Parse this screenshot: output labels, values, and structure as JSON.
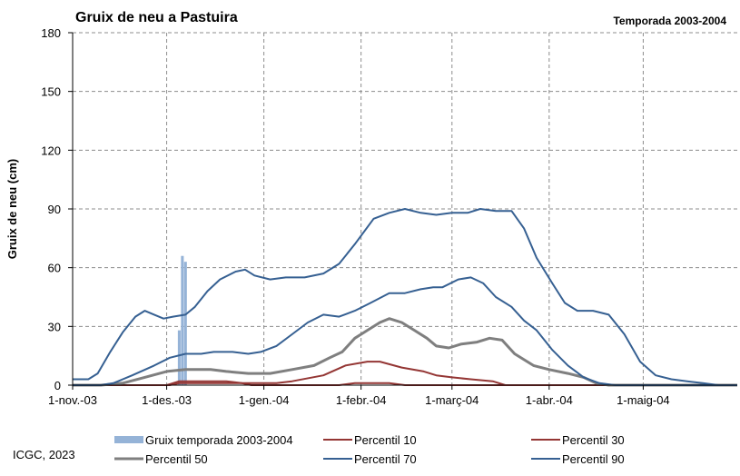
{
  "chart_data": {
    "type": "line",
    "title": "Gruix de neu a Pastuira",
    "subtitle": "Temporada 2003-2004",
    "ylabel": "Gruix de neu (cm)",
    "xlabel": "",
    "ylim": [
      0,
      180
    ],
    "yticks": [
      0,
      30,
      60,
      90,
      120,
      150,
      180
    ],
    "xlim": [
      "2003-11-01",
      "2004-05-31"
    ],
    "xticks": [
      {
        "date": "2003-11-01",
        "label": "1-nov.-03"
      },
      {
        "date": "2003-12-01",
        "label": "1-des.-03"
      },
      {
        "date": "2004-01-01",
        "label": "1-gen.-04"
      },
      {
        "date": "2004-02-01",
        "label": "1-febr.-04"
      },
      {
        "date": "2004-03-01",
        "label": "1-març-04"
      },
      {
        "date": "2004-04-01",
        "label": "1-abr.-04"
      },
      {
        "date": "2004-05-01",
        "label": "1-maig-04"
      }
    ],
    "grid": true,
    "legend_position": "bottom",
    "bars": {
      "name": "Gruix temporada 2003-2004",
      "color": "#95b3d7",
      "points": [
        [
          "2003-12-05",
          28
        ],
        [
          "2003-12-06",
          66
        ],
        [
          "2003-12-07",
          63
        ]
      ]
    },
    "series": [
      {
        "name": "Percentil 10",
        "color": "#943634",
        "width": 2,
        "points": [
          [
            "2003-11-01",
            0
          ],
          [
            "2003-12-02",
            0
          ],
          [
            "2003-12-05",
            1
          ],
          [
            "2003-12-25",
            1
          ],
          [
            "2003-12-28",
            0
          ],
          [
            "2004-01-25",
            0
          ],
          [
            "2004-01-30",
            1
          ],
          [
            "2004-02-10",
            1
          ],
          [
            "2004-02-15",
            0
          ],
          [
            "2004-05-31",
            0
          ]
        ]
      },
      {
        "name": "Percentil 30",
        "color": "#943634",
        "width": 2,
        "points": [
          [
            "2003-11-01",
            0
          ],
          [
            "2003-12-01",
            0
          ],
          [
            "2003-12-05",
            2
          ],
          [
            "2003-12-20",
            2
          ],
          [
            "2003-12-25",
            1
          ],
          [
            "2004-01-05",
            1
          ],
          [
            "2004-01-10",
            2
          ],
          [
            "2004-01-20",
            5
          ],
          [
            "2004-01-27",
            10
          ],
          [
            "2004-02-03",
            12
          ],
          [
            "2004-02-07",
            12
          ],
          [
            "2004-02-14",
            9
          ],
          [
            "2004-02-21",
            7
          ],
          [
            "2004-02-25",
            5
          ],
          [
            "2004-03-01",
            4
          ],
          [
            "2004-03-07",
            3
          ],
          [
            "2004-03-14",
            2
          ],
          [
            "2004-03-18",
            0
          ],
          [
            "2004-05-31",
            0
          ]
        ]
      },
      {
        "name": "Percentil 50",
        "color": "#7f7f7f",
        "width": 3,
        "points": [
          [
            "2003-11-01",
            0
          ],
          [
            "2003-11-10",
            0
          ],
          [
            "2003-11-17",
            1
          ],
          [
            "2003-11-24",
            4
          ],
          [
            "2003-12-01",
            7
          ],
          [
            "2003-12-07",
            8
          ],
          [
            "2003-12-15",
            8
          ],
          [
            "2003-12-20",
            7
          ],
          [
            "2003-12-27",
            6
          ],
          [
            "2004-01-03",
            6
          ],
          [
            "2004-01-10",
            8
          ],
          [
            "2004-01-17",
            10
          ],
          [
            "2004-01-22",
            14
          ],
          [
            "2004-01-26",
            17
          ],
          [
            "2004-01-30",
            24
          ],
          [
            "2004-02-03",
            28
          ],
          [
            "2004-02-07",
            32
          ],
          [
            "2004-02-10",
            34
          ],
          [
            "2004-02-14",
            32
          ],
          [
            "2004-02-18",
            28
          ],
          [
            "2004-02-22",
            24
          ],
          [
            "2004-02-25",
            20
          ],
          [
            "2004-02-29",
            19
          ],
          [
            "2004-03-04",
            21
          ],
          [
            "2004-03-09",
            22
          ],
          [
            "2004-03-13",
            24
          ],
          [
            "2004-03-17",
            23
          ],
          [
            "2004-03-21",
            16
          ],
          [
            "2004-03-27",
            10
          ],
          [
            "2004-04-01",
            8
          ],
          [
            "2004-04-07",
            6
          ],
          [
            "2004-04-12",
            4
          ],
          [
            "2004-04-16",
            1
          ],
          [
            "2004-04-20",
            0
          ],
          [
            "2004-05-31",
            0
          ]
        ]
      },
      {
        "name": "Percentil 70",
        "color": "#366092",
        "width": 2,
        "points": [
          [
            "2003-11-01",
            0
          ],
          [
            "2003-11-10",
            0
          ],
          [
            "2003-11-14",
            1
          ],
          [
            "2003-11-20",
            5
          ],
          [
            "2003-11-27",
            10
          ],
          [
            "2003-12-02",
            14
          ],
          [
            "2003-12-07",
            16
          ],
          [
            "2003-12-12",
            16
          ],
          [
            "2003-12-16",
            17
          ],
          [
            "2003-12-22",
            17
          ],
          [
            "2003-12-27",
            16
          ],
          [
            "2003-12-31",
            17
          ],
          [
            "2004-01-05",
            20
          ],
          [
            "2004-01-10",
            26
          ],
          [
            "2004-01-15",
            32
          ],
          [
            "2004-01-20",
            36
          ],
          [
            "2004-01-25",
            35
          ],
          [
            "2004-01-30",
            38
          ],
          [
            "2004-02-04",
            42
          ],
          [
            "2004-02-10",
            47
          ],
          [
            "2004-02-15",
            47
          ],
          [
            "2004-02-20",
            49
          ],
          [
            "2004-02-24",
            50
          ],
          [
            "2004-02-27",
            50
          ],
          [
            "2004-03-03",
            54
          ],
          [
            "2004-03-07",
            55
          ],
          [
            "2004-03-11",
            52
          ],
          [
            "2004-03-15",
            45
          ],
          [
            "2004-03-20",
            40
          ],
          [
            "2004-03-24",
            33
          ],
          [
            "2004-03-28",
            28
          ],
          [
            "2004-04-02",
            18
          ],
          [
            "2004-04-07",
            10
          ],
          [
            "2004-04-12",
            4
          ],
          [
            "2004-04-17",
            1
          ],
          [
            "2004-04-22",
            0
          ],
          [
            "2004-05-31",
            0
          ]
        ]
      },
      {
        "name": "Percentil 90",
        "color": "#366092",
        "width": 2,
        "points": [
          [
            "2003-11-01",
            3
          ],
          [
            "2003-11-06",
            3
          ],
          [
            "2003-11-09",
            6
          ],
          [
            "2003-11-13",
            17
          ],
          [
            "2003-11-17",
            27
          ],
          [
            "2003-11-21",
            35
          ],
          [
            "2003-11-24",
            38
          ],
          [
            "2003-11-27",
            36
          ],
          [
            "2003-11-30",
            34
          ],
          [
            "2003-12-03",
            35
          ],
          [
            "2003-12-07",
            36
          ],
          [
            "2003-12-10",
            40
          ],
          [
            "2003-12-14",
            48
          ],
          [
            "2003-12-18",
            54
          ],
          [
            "2003-12-23",
            58
          ],
          [
            "2003-12-26",
            59
          ],
          [
            "2003-12-29",
            56
          ],
          [
            "2004-01-03",
            54
          ],
          [
            "2004-01-08",
            55
          ],
          [
            "2004-01-14",
            55
          ],
          [
            "2004-01-20",
            57
          ],
          [
            "2004-01-25",
            62
          ],
          [
            "2004-01-30",
            72
          ],
          [
            "2004-02-05",
            85
          ],
          [
            "2004-02-10",
            88
          ],
          [
            "2004-02-15",
            90
          ],
          [
            "2004-02-20",
            88
          ],
          [
            "2004-02-25",
            87
          ],
          [
            "2004-03-01",
            88
          ],
          [
            "2004-03-06",
            88
          ],
          [
            "2004-03-10",
            90
          ],
          [
            "2004-03-15",
            89
          ],
          [
            "2004-03-20",
            89
          ],
          [
            "2004-03-24",
            80
          ],
          [
            "2004-03-28",
            65
          ],
          [
            "2004-04-02",
            52
          ],
          [
            "2004-04-06",
            42
          ],
          [
            "2004-04-10",
            38
          ],
          [
            "2004-04-15",
            38
          ],
          [
            "2004-04-20",
            36
          ],
          [
            "2004-04-25",
            26
          ],
          [
            "2004-04-30",
            12
          ],
          [
            "2004-05-05",
            5
          ],
          [
            "2004-05-10",
            3
          ],
          [
            "2004-05-15",
            2
          ],
          [
            "2004-05-20",
            1
          ],
          [
            "2004-05-25",
            0
          ],
          [
            "2004-05-31",
            0
          ]
        ]
      }
    ]
  },
  "credit": "ICGC, 2023"
}
